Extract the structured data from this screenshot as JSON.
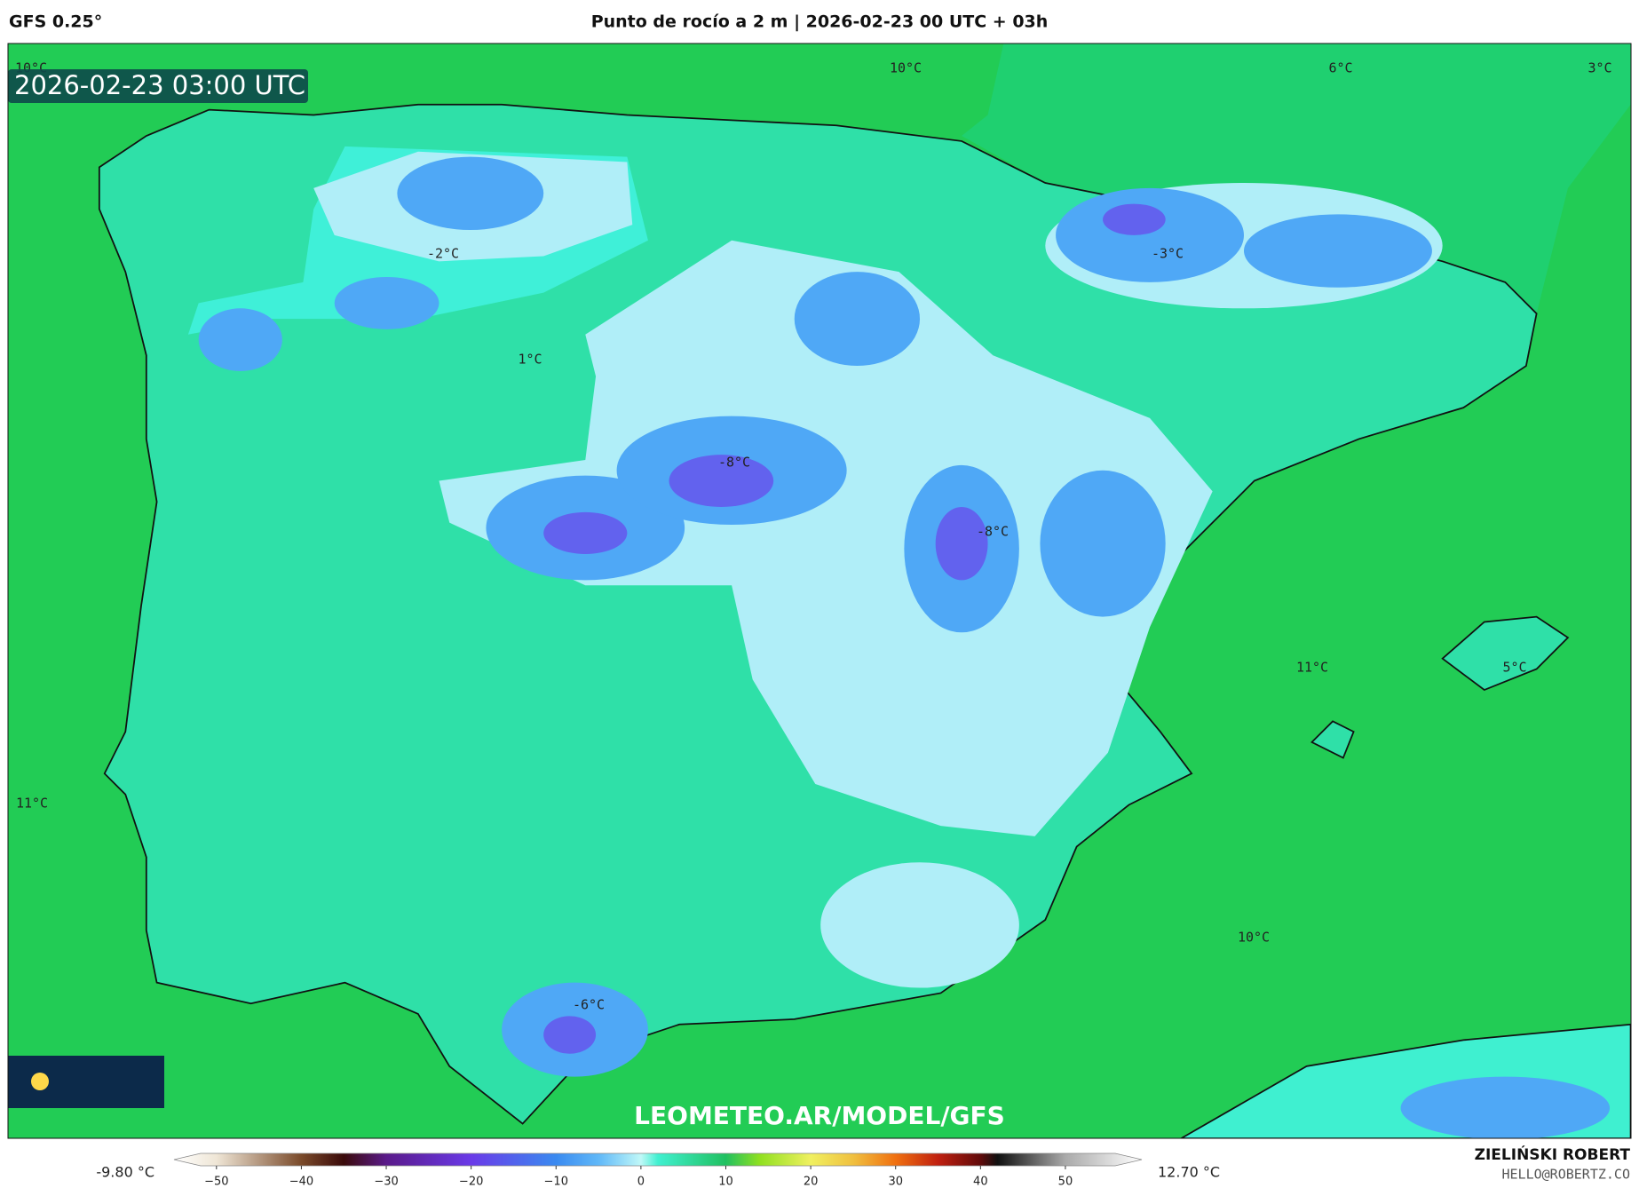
{
  "header": {
    "model": "GFS 0.25°",
    "title": "Punto de rocío a 2 m | 2026-02-23 00 UTC + 03h"
  },
  "map": {
    "timestamp": "2026-02-23 03:00 UTC",
    "labels": [
      "10°C",
      "10°C",
      "6°C",
      "3°C",
      "-2°C",
      "-3°C",
      "1°C",
      "-8°C",
      "-8°C",
      "11°C",
      "5°C",
      "11°C",
      "10°C",
      "-6°C"
    ],
    "watermark": "LEOMETEO.AR/MODEL/GFS"
  },
  "colorbar": {
    "min_label": "-9.80 °C",
    "max_label": "12.70 °C",
    "lim": [
      -55,
      59
    ],
    "ticks": [
      {
        "value": -50,
        "label": "−50"
      },
      {
        "value": -40,
        "label": "−40"
      },
      {
        "value": -30,
        "label": "−30"
      },
      {
        "value": -20,
        "label": "−20"
      },
      {
        "value": -10,
        "label": "−10"
      },
      0,
      10,
      20,
      30,
      40,
      50
    ],
    "stops": [
      {
        "value": -55,
        "color": "#ffffff"
      },
      {
        "value": -50,
        "color": "#efe6d6"
      },
      {
        "value": -40,
        "color": "#7a4a2a"
      },
      {
        "value": -35,
        "color": "#3a0a0a"
      },
      {
        "value": -30,
        "color": "#5a1a8a"
      },
      {
        "value": -20,
        "color": "#6a3ae8"
      },
      {
        "value": -10,
        "color": "#3a8af0"
      },
      {
        "value": -5,
        "color": "#60b8f8"
      },
      {
        "value": 0,
        "color": "#c0f8f8"
      },
      {
        "value": 2,
        "color": "#40f0d0"
      },
      {
        "value": 10,
        "color": "#20c060"
      },
      {
        "value": 14,
        "color": "#90e020"
      },
      {
        "value": 20,
        "color": "#f0f060"
      },
      {
        "value": 25,
        "color": "#f0c040"
      },
      {
        "value": 30,
        "color": "#f07010"
      },
      {
        "value": 35,
        "color": "#c02010"
      },
      {
        "value": 40,
        "color": "#600a0a"
      },
      {
        "value": 42,
        "color": "#101010"
      },
      {
        "value": 50,
        "color": "#aaaaaa"
      },
      {
        "value": 59,
        "color": "#ffffff"
      }
    ]
  },
  "credits": {
    "author": "ZIELIŃSKI ROBERT",
    "email": "HELLO@ROBERTZ.CO"
  }
}
